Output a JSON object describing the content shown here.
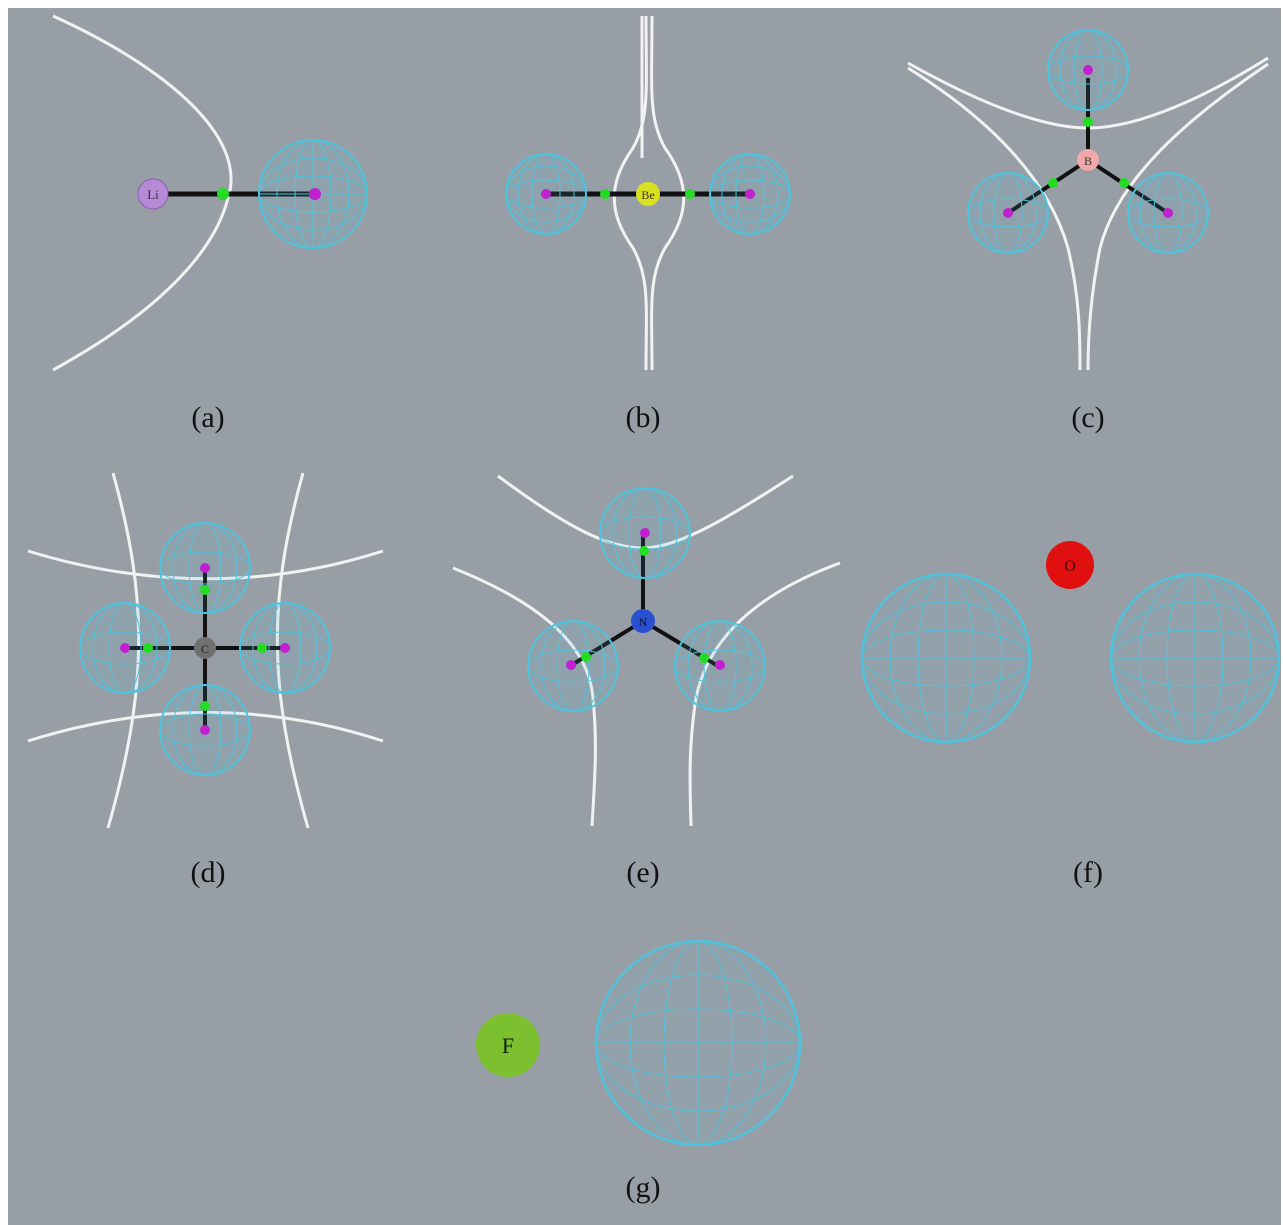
{
  "colors": {
    "background": "#989ea6",
    "bond": "#111111",
    "basin_mesh": "#4fc3dc",
    "separatrix": "#f2f2f2",
    "critical_point_green": "#22dd22",
    "hydrogen_magenta": "#c020d0",
    "Li": "#b78ad8",
    "Be": "#d8e020",
    "B": "#f0a8a8",
    "C": "#707070",
    "N": "#2850d0",
    "O": "#e01010",
    "F": "#7cc030"
  },
  "panels": {
    "a": {
      "caption": "(a)",
      "atom": "Li"
    },
    "b": {
      "caption": "(b)",
      "atom": "Be"
    },
    "c": {
      "caption": "(c)",
      "atom": "B"
    },
    "d": {
      "caption": "(d)",
      "atom": "C"
    },
    "e": {
      "caption": "(e)",
      "atom": "N"
    },
    "f": {
      "caption": "(f)",
      "atom": "O"
    },
    "g": {
      "caption": "(g)",
      "atom": "F"
    }
  }
}
